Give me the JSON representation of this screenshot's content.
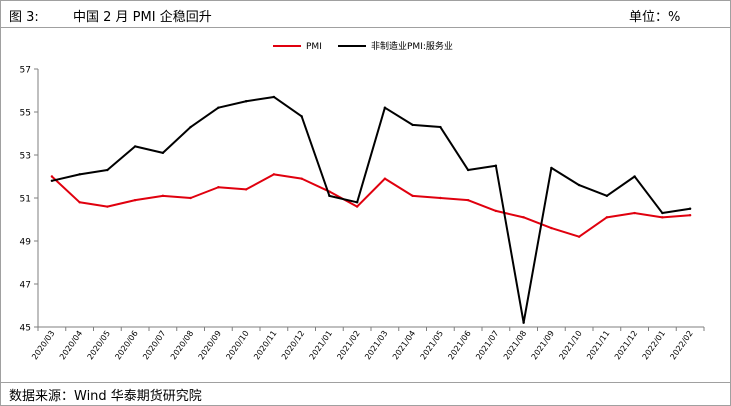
{
  "header": {
    "fig_label": "图 3:",
    "title": "中国 2 月 PMI 企稳回升",
    "unit": "单位：%"
  },
  "footer": {
    "source": "数据来源：Wind    华泰期货研究院"
  },
  "chart_data": {
    "type": "line",
    "title": "中国 2 月 PMI 企稳回升",
    "xlabel": "",
    "ylabel": "",
    "ylim": [
      45,
      57
    ],
    "yticks": [
      45,
      47,
      49,
      51,
      53,
      55,
      57
    ],
    "grid": false,
    "legend_position": "top-center",
    "categories": [
      "2020/03",
      "2020/04",
      "2020/05",
      "2020/06",
      "2020/07",
      "2020/08",
      "2020/09",
      "2020/10",
      "2020/11",
      "2020/12",
      "2021/01",
      "2021/02",
      "2021/03",
      "2021/04",
      "2021/05",
      "2021/06",
      "2021/07",
      "2021/08",
      "2021/09",
      "2021/10",
      "2021/11",
      "2021/12",
      "2022/01",
      "2022/02"
    ],
    "series": [
      {
        "name": "PMI",
        "color": "#e0000e",
        "values": [
          52.0,
          50.8,
          50.6,
          50.9,
          51.1,
          51.0,
          51.5,
          51.4,
          52.1,
          51.9,
          51.3,
          50.6,
          51.9,
          51.1,
          51.0,
          50.9,
          50.4,
          50.1,
          49.6,
          49.2,
          50.1,
          50.3,
          50.1,
          50.2
        ]
      },
      {
        "name": "非制造业PMI:服务业",
        "color": "#000000",
        "values": [
          51.8,
          52.1,
          52.3,
          53.4,
          53.1,
          54.3,
          55.2,
          55.5,
          55.7,
          54.8,
          51.1,
          50.8,
          55.2,
          54.4,
          54.3,
          52.3,
          52.5,
          45.2,
          52.4,
          51.6,
          51.1,
          52.0,
          50.3,
          50.5
        ]
      }
    ]
  }
}
